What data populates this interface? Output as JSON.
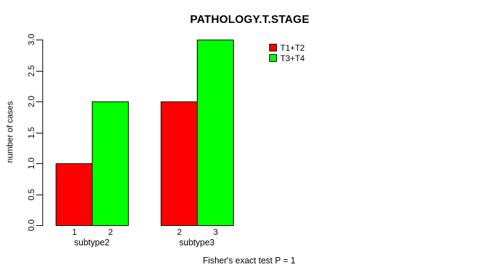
{
  "accent_colors": {
    "red": "#FF0000",
    "green": "#00FF00",
    "axis": "#000000",
    "background": "#FFFFFF"
  },
  "chart_data": {
    "type": "bar",
    "title": "PATHOLOGY.T.STAGE",
    "xlabel": "",
    "ylabel": "number of cases",
    "ylim": [
      0.0,
      3.0
    ],
    "yticks": [
      "0.0",
      "0.5",
      "1.0",
      "1.5",
      "2.0",
      "2.5",
      "3.0"
    ],
    "grid": false,
    "legend_position": "top-right",
    "categories": [
      "subtype2",
      "subtype3"
    ],
    "bar_labels": [
      [
        "1",
        "2"
      ],
      [
        "2",
        "3"
      ]
    ],
    "series": [
      {
        "name": "T1+T2",
        "color": "#FF0000",
        "values": [
          1,
          2
        ]
      },
      {
        "name": "T3+T4",
        "color": "#00FF00",
        "values": [
          2,
          3
        ]
      }
    ],
    "annotation": "Fisher's exact test P = 1"
  }
}
